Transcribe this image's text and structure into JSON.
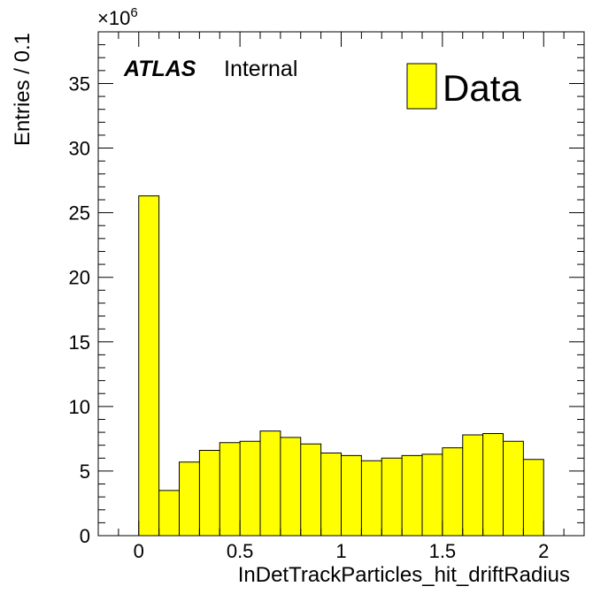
{
  "chart_data": {
    "type": "bar",
    "xlabel": "InDetTrackParticles_hit_driftRadius",
    "ylabel": "Entries / 0.1",
    "exponent_label": "×10",
    "exponent_power": "6",
    "atlas_label": "ATLAS",
    "atlas_sublabel": "Internal",
    "legend": {
      "label": "Data",
      "placement": "top-right"
    },
    "xlim": [
      -0.2,
      2.2
    ],
    "ylim": [
      0,
      39
    ],
    "grid": false,
    "bin_width": 0.1,
    "x_tick_labels": [
      "0",
      "0.5",
      "1",
      "1.5",
      "2"
    ],
    "x_ticks": [
      0,
      0.5,
      1,
      1.5,
      2
    ],
    "y_tick_labels": [
      "0",
      "5",
      "10",
      "15",
      "20",
      "25",
      "30",
      "35"
    ],
    "y_ticks": [
      0,
      5,
      10,
      15,
      20,
      25,
      30,
      35
    ],
    "bin_edges": [
      0,
      0.1,
      0.2,
      0.3,
      0.4,
      0.5,
      0.6,
      0.7,
      0.8,
      0.9,
      1.0,
      1.1,
      1.2,
      1.3,
      1.4,
      1.5,
      1.6,
      1.7,
      1.8,
      1.9,
      2.0
    ],
    "values": [
      26.3,
      3.5,
      5.7,
      6.6,
      7.2,
      7.3,
      8.1,
      7.6,
      7.1,
      6.4,
      6.2,
      5.8,
      6.0,
      6.2,
      6.3,
      6.8,
      7.8,
      7.9,
      7.3,
      5.9
    ],
    "colors": {
      "fill": "#ffff00",
      "stroke": "#000000"
    }
  }
}
